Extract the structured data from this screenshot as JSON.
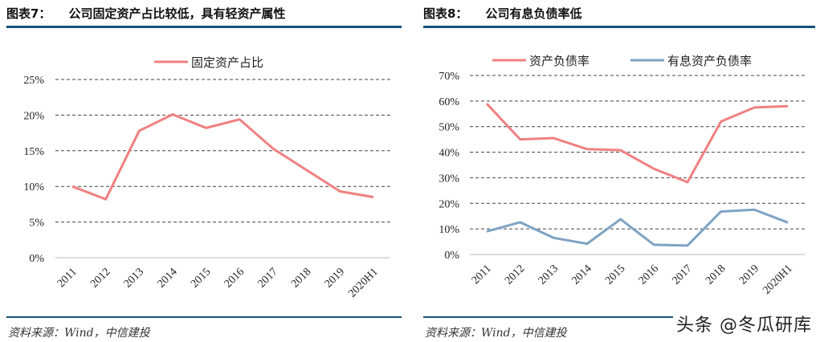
{
  "left": {
    "title_num": "图表7：",
    "title": "公司固定资产占比较低，具有轻资产属性",
    "source": "资料来源：Wind，中信建投"
  },
  "right": {
    "title_num": "图表8：",
    "title": "公司有息负债率低",
    "source": "资料来源：Wind，中信建投"
  },
  "watermark": "头条 @冬瓜研库",
  "colors": {
    "red": "#f08080",
    "blue": "#7ea3c4",
    "rule": "#14527a"
  },
  "chart_data": [
    {
      "type": "line",
      "categories": [
        "2011",
        "2012",
        "2013",
        "2014",
        "2015",
        "2016",
        "2017",
        "2018",
        "2019",
        "2020H1"
      ],
      "series": [
        {
          "name": "固定资产占比",
          "color": "#f08080",
          "values": [
            10.0,
            8.2,
            17.8,
            20.1,
            18.2,
            19.4,
            15.3,
            12.3,
            9.3,
            8.5
          ]
        }
      ],
      "yticks": [
        "0%",
        "5%",
        "10%",
        "15%",
        "20%",
        "25%"
      ],
      "ylim": [
        0,
        25
      ],
      "grid": true,
      "legend": "top"
    },
    {
      "type": "line",
      "categories": [
        "2011",
        "2012",
        "2013",
        "2014",
        "2015",
        "2016",
        "2017",
        "2018",
        "2019",
        "2020H1"
      ],
      "series": [
        {
          "name": "资产负债率",
          "color": "#f08080",
          "values": [
            59.0,
            45.0,
            45.5,
            41.2,
            40.8,
            33.5,
            28.3,
            52.0,
            57.5,
            58.0
          ]
        },
        {
          "name": "有息资产负债率",
          "color": "#7ea3c4",
          "values": [
            9.0,
            12.6,
            6.5,
            4.2,
            13.8,
            3.8,
            3.5,
            16.8,
            17.5,
            12.5
          ]
        }
      ],
      "yticks": [
        "0%",
        "10%",
        "20%",
        "30%",
        "40%",
        "50%",
        "60%",
        "70%"
      ],
      "ylim": [
        0,
        70
      ],
      "grid": true,
      "legend": "top"
    }
  ]
}
